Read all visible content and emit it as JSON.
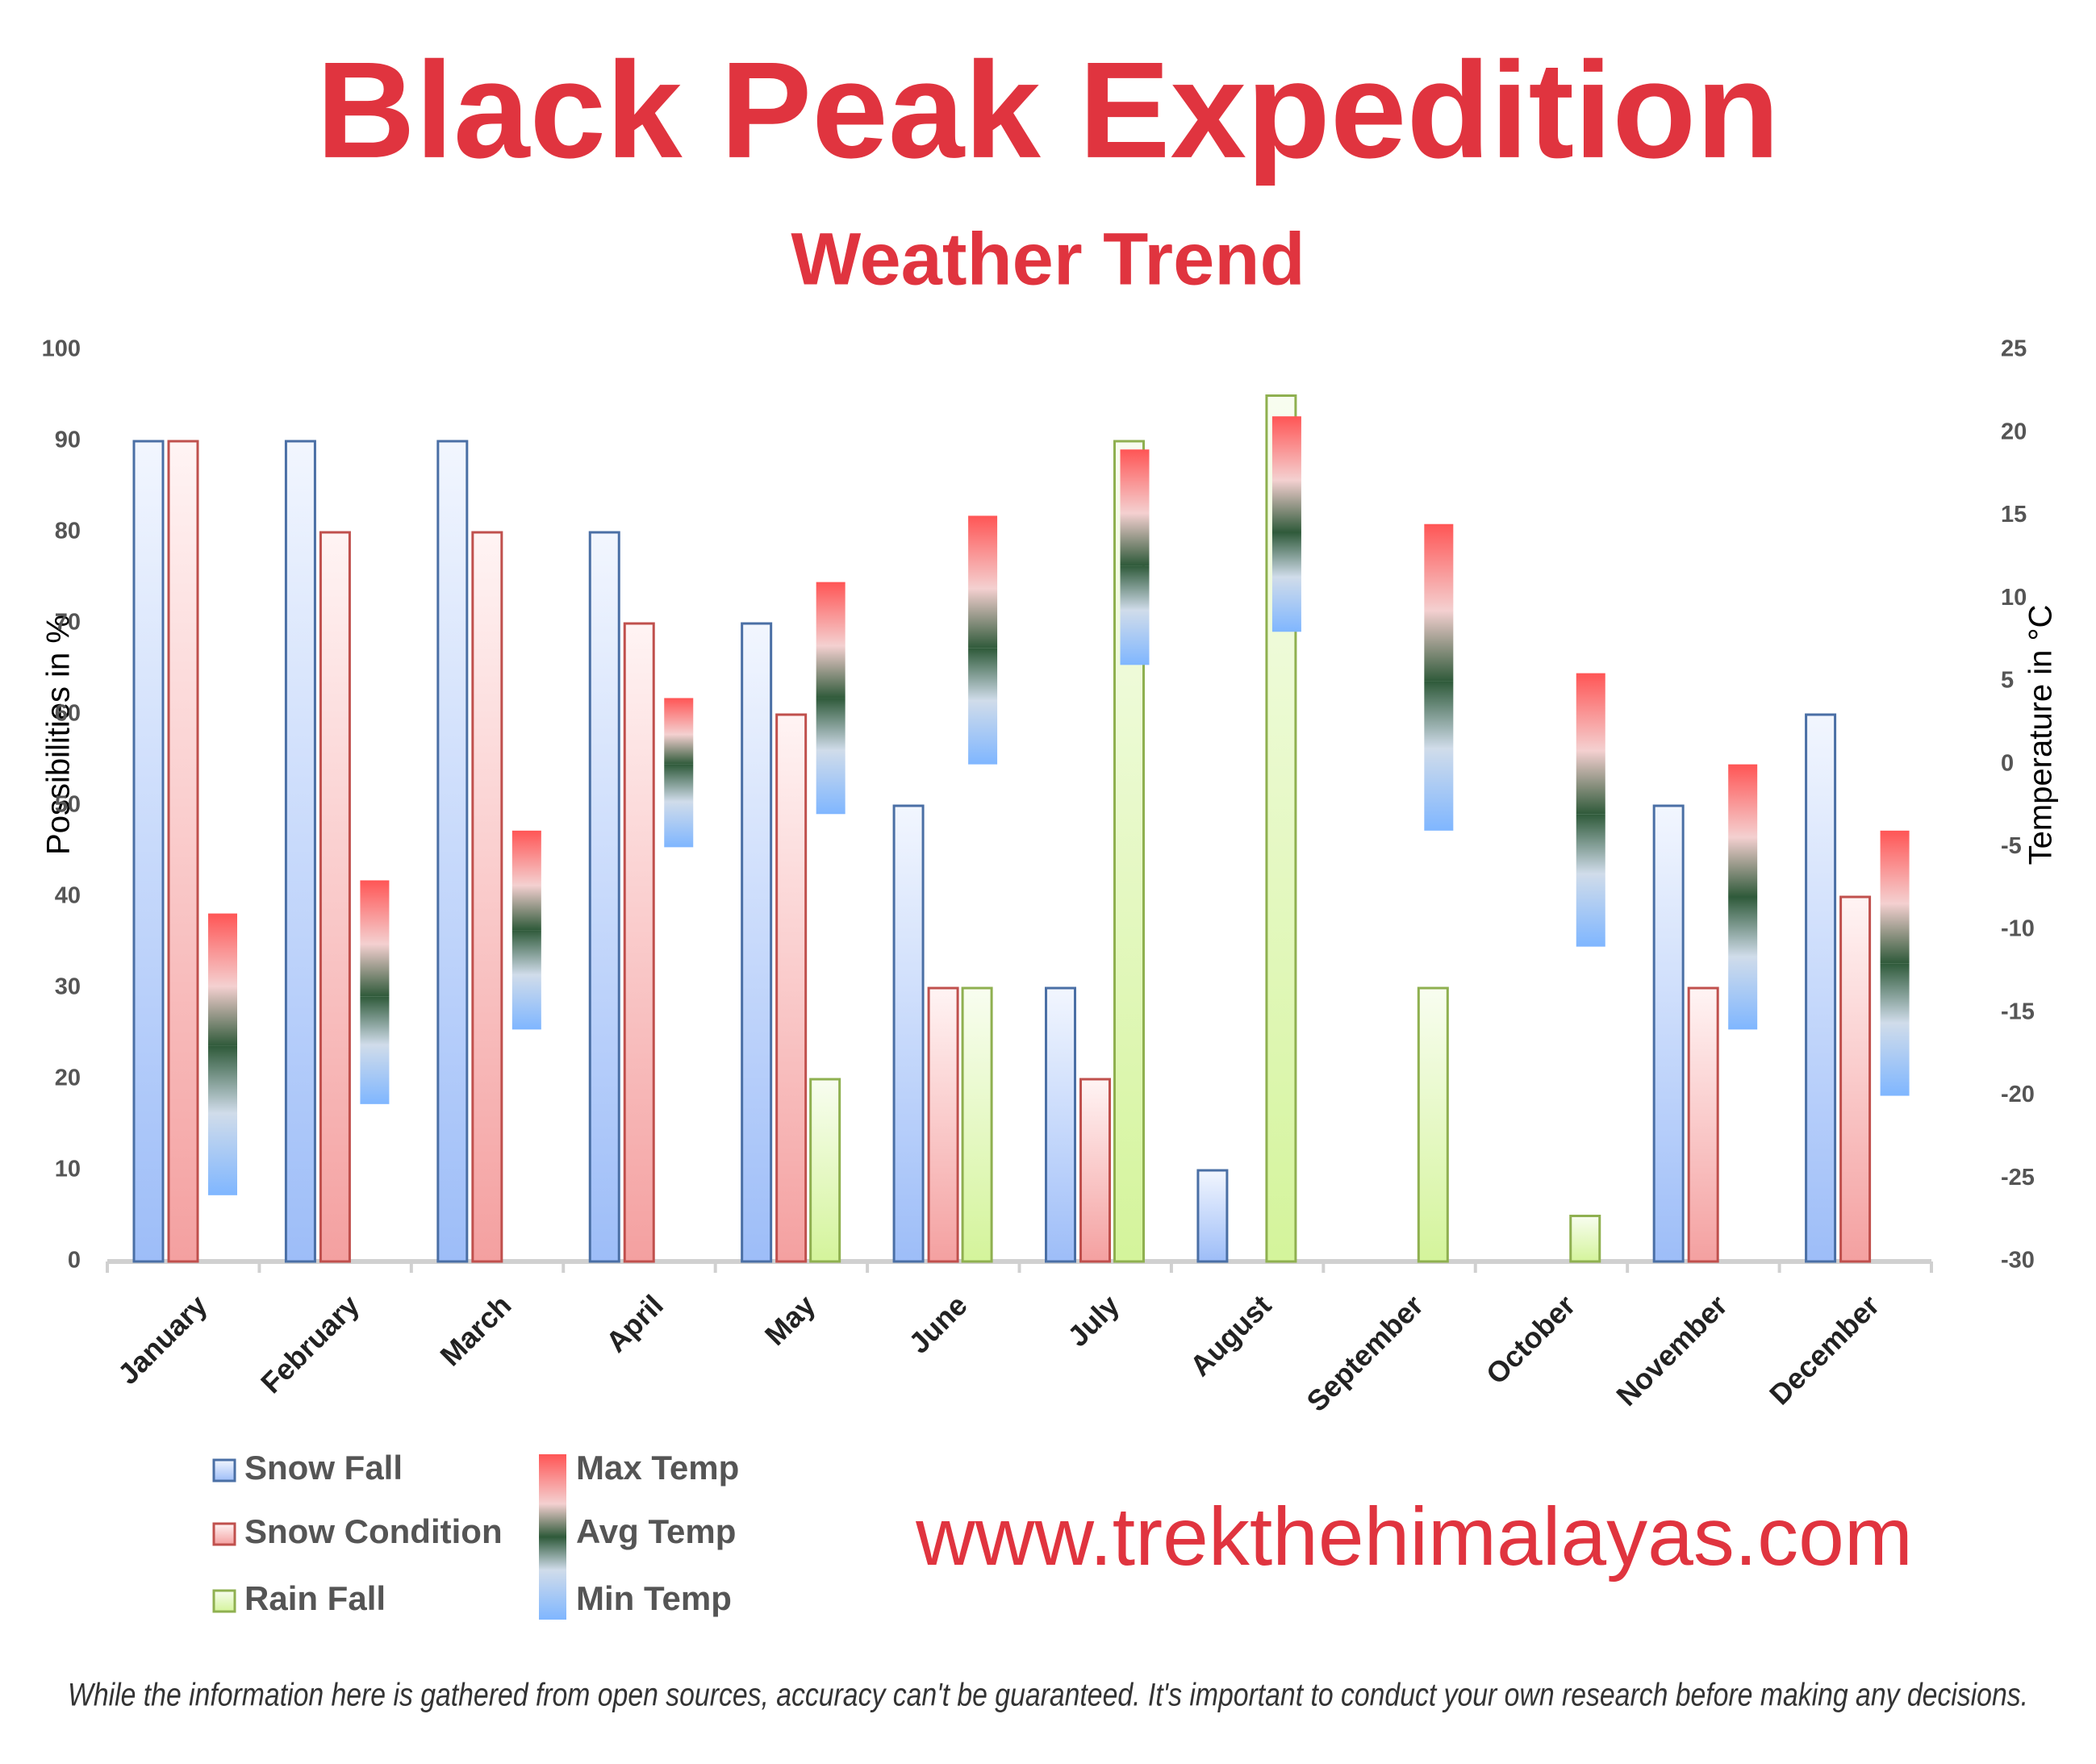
{
  "chart_data": {
    "type": "bar",
    "title": "Black Peak Expedition",
    "subtitle": "Weather Trend",
    "y_label": "Possibilities in %",
    "y2_label": "Temperature in °C",
    "categories": [
      "January",
      "February",
      "March",
      "April",
      "May",
      "June",
      "July",
      "August",
      "September",
      "October",
      "November",
      "December"
    ],
    "ylim": [
      0,
      100
    ],
    "yticks": [
      0,
      10,
      20,
      30,
      40,
      50,
      60,
      70,
      80,
      90,
      100
    ],
    "y2lim": [
      -30,
      25
    ],
    "y2ticks": [
      -30,
      -25,
      -20,
      -15,
      -10,
      -5,
      0,
      5,
      10,
      15,
      20,
      25
    ],
    "series": [
      {
        "name": "Snow Fall",
        "color": "#9dbdf8",
        "values": [
          90,
          90,
          90,
          80,
          70,
          50,
          30,
          10,
          null,
          null,
          50,
          60
        ]
      },
      {
        "name": "Snow Condition",
        "color": "#f4a0a0",
        "values": [
          90,
          80,
          80,
          70,
          60,
          30,
          20,
          null,
          null,
          null,
          30,
          40
        ]
      },
      {
        "name": "Rain Fall",
        "color": "#d4f49b",
        "values": [
          null,
          null,
          null,
          null,
          20,
          30,
          90,
          95,
          30,
          5,
          null,
          null
        ]
      },
      {
        "name": "Max Temp",
        "color": "#ff5555",
        "axis": "y2",
        "values": [
          -9,
          -7,
          -4,
          4,
          11,
          15,
          19,
          21,
          14.5,
          5.5,
          0,
          -4
        ]
      },
      {
        "name": "Avg Temp",
        "color": "#2f5a3a",
        "axis": "y2",
        "values": [
          -17,
          -14,
          -10,
          0,
          4,
          7,
          12,
          14,
          5,
          -3,
          -8,
          -12
        ]
      },
      {
        "name": "Min Temp",
        "color": "#7fb6ff",
        "axis": "y2",
        "values": [
          -26,
          -20.5,
          -16,
          -5,
          -3,
          0,
          6,
          8,
          -4,
          -11,
          -16,
          -20
        ]
      }
    ]
  },
  "website": "www.trekthehimalayas.com",
  "disclaimer": "While the information here is gathered from open sources, accuracy can't be guaranteed. It's important to conduct your own research before making any decisions."
}
